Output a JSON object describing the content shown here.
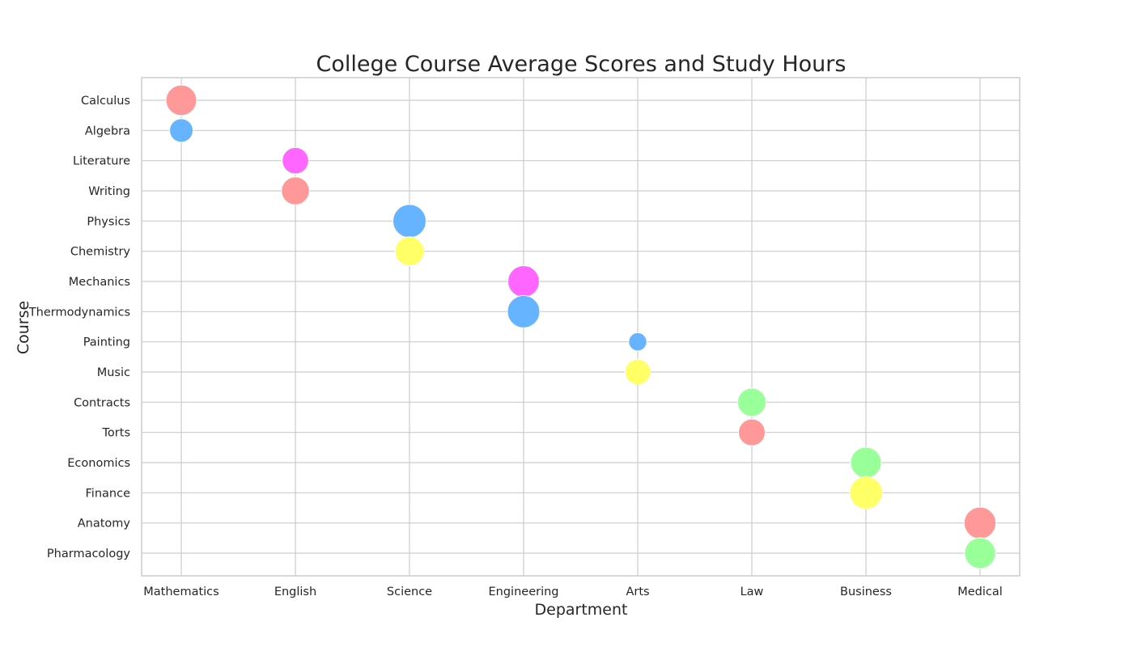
{
  "chart_data": {
    "type": "scatter",
    "title": "College Course Average Scores and Study Hours",
    "xlabel": "Department",
    "ylabel": "Course",
    "x_categories": [
      "Mathematics",
      "English",
      "Science",
      "Engineering",
      "Arts",
      "Law",
      "Business",
      "Medical"
    ],
    "y_categories": [
      "Calculus",
      "Algebra",
      "Literature",
      "Writing",
      "Physics",
      "Chemistry",
      "Mechanics",
      "Thermodynamics",
      "Painting",
      "Music",
      "Contracts",
      "Torts",
      "Economics",
      "Finance",
      "Anatomy",
      "Pharmacology"
    ],
    "grid": true,
    "legend": "none",
    "palette": {
      "red": "#ff9999",
      "blue": "#66b3ff",
      "magenta": "#ff66ff",
      "yellow": "#ffff66",
      "green": "#99ff99"
    },
    "points": [
      {
        "department": "Mathematics",
        "course": "Calculus",
        "relative_size": 0.85,
        "color": "red"
      },
      {
        "department": "Mathematics",
        "course": "Algebra",
        "relative_size": 0.5,
        "color": "blue"
      },
      {
        "department": "English",
        "course": "Literature",
        "relative_size": 0.63,
        "color": "magenta"
      },
      {
        "department": "English",
        "course": "Writing",
        "relative_size": 0.71,
        "color": "red"
      },
      {
        "department": "Science",
        "course": "Physics",
        "relative_size": 1.0,
        "color": "blue"
      },
      {
        "department": "Science",
        "course": "Chemistry",
        "relative_size": 0.76,
        "color": "yellow"
      },
      {
        "department": "Engineering",
        "course": "Mechanics",
        "relative_size": 0.9,
        "color": "magenta"
      },
      {
        "department": "Engineering",
        "course": "Thermodynamics",
        "relative_size": 0.95,
        "color": "blue"
      },
      {
        "department": "Arts",
        "course": "Painting",
        "relative_size": 0.3,
        "color": "blue"
      },
      {
        "department": "Arts",
        "course": "Music",
        "relative_size": 0.59,
        "color": "yellow"
      },
      {
        "department": "Law",
        "course": "Contracts",
        "relative_size": 0.73,
        "color": "green"
      },
      {
        "department": "Law",
        "course": "Torts",
        "relative_size": 0.65,
        "color": "red"
      },
      {
        "department": "Business",
        "course": "Economics",
        "relative_size": 0.86,
        "color": "green"
      },
      {
        "department": "Business",
        "course": "Finance",
        "relative_size": 0.97,
        "color": "yellow"
      },
      {
        "department": "Medical",
        "course": "Anatomy",
        "relative_size": 0.92,
        "color": "red"
      },
      {
        "department": "Medical",
        "course": "Pharmacology",
        "relative_size": 0.87,
        "color": "green"
      }
    ]
  }
}
